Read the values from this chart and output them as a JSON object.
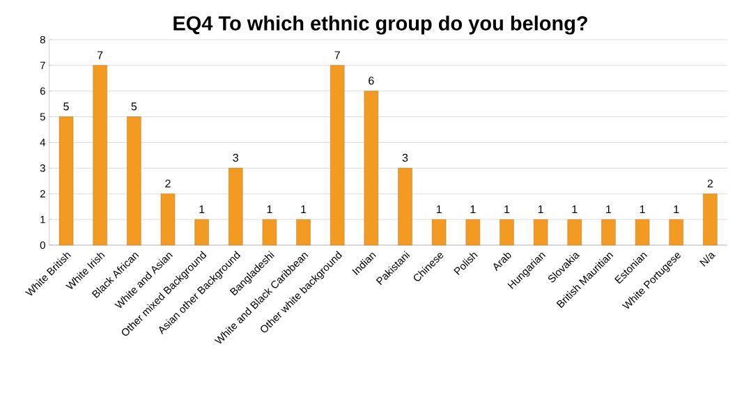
{
  "chart_data": {
    "type": "bar",
    "title": "EQ4 To which ethnic group do you belong?",
    "categories": [
      "White British",
      "White Irish",
      "Black African",
      "White and Asian",
      "Other mixed Background",
      "Asian other Background",
      "Bangladeshi",
      "White and Black Caribbean",
      "Other white background",
      "Indian",
      "Pakistani",
      "Chinese",
      "Polish",
      "Arab",
      "Hungarian",
      "Slovakia",
      "British Mauritian",
      "Estonian",
      "White Portugese",
      "N/a"
    ],
    "values": [
      5,
      7,
      5,
      2,
      1,
      3,
      1,
      1,
      7,
      6,
      3,
      1,
      1,
      1,
      1,
      1,
      1,
      1,
      1,
      2
    ],
    "color": "#f29a22",
    "ylim": [
      0,
      8
    ],
    "yticks": [
      0,
      1,
      2,
      3,
      4,
      5,
      6,
      7,
      8
    ],
    "grid": "y",
    "data_labels": true
  }
}
